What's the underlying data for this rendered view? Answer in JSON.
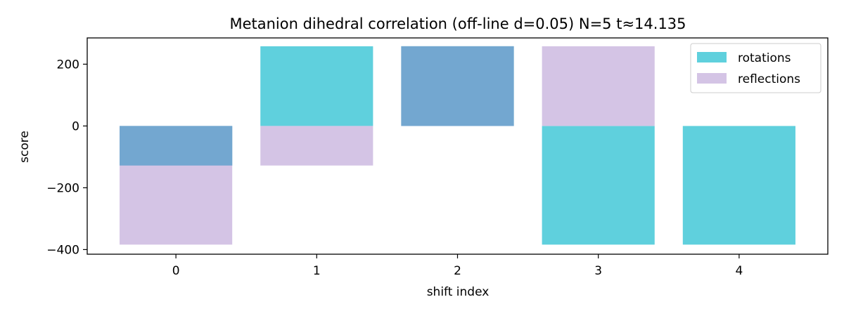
{
  "chart_data": {
    "type": "bar",
    "title": "Metanion dihedral correlation (off-line d=0.05) N=5 t≈14.135",
    "xlabel": "shift index",
    "ylabel": "score",
    "categories": [
      "0",
      "1",
      "2",
      "3",
      "4"
    ],
    "ylim": [
      -415,
      285
    ],
    "yticks": [
      -400,
      -200,
      0,
      200
    ],
    "ytick_labels": [
      "−400",
      "−200",
      "0",
      "200"
    ],
    "grid": false,
    "legend_position": "top-right",
    "colors": {
      "rotations": "#5fd0dd",
      "reflections": "#d4c4e5",
      "overlap": "#73a7d0"
    },
    "series": [
      {
        "name": "rotations",
        "values": [
          -128,
          258,
          258,
          -384,
          -384
        ]
      },
      {
        "name": "reflections",
        "values": [
          -384,
          -128,
          258,
          258,
          0
        ]
      }
    ],
    "legend": [
      {
        "label": "rotations",
        "color": "#5fd0dd"
      },
      {
        "label": "reflections",
        "color": "#d4c4e5"
      }
    ]
  }
}
